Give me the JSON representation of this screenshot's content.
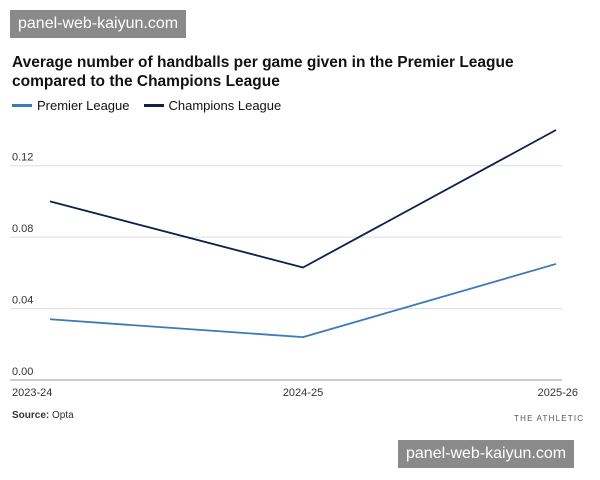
{
  "watermark": {
    "top": "panel-web-kaiyun.com",
    "bottom": "panel-web-kaiyun.com"
  },
  "footer": {
    "source_label": "Source:",
    "source_value": "Opta",
    "brand": "THE ATHLETIC"
  },
  "colors": {
    "premier": "#3d7ab8",
    "champions": "#0c2150",
    "grid": "#dddddd"
  },
  "chart_data": {
    "type": "line",
    "title": "Average number of handballs per game given in the Premier League compared to the Champions League",
    "x": [
      "2023-24",
      "2024-25",
      "2025-26"
    ],
    "series": [
      {
        "name": "Premier League",
        "values": [
          0.034,
          0.024,
          0.065
        ]
      },
      {
        "name": "Champions League",
        "values": [
          0.1,
          0.063,
          0.14
        ]
      }
    ],
    "ylim": [
      0,
      0.14
    ],
    "yticks": [
      "0.00",
      "0.04",
      "0.08",
      "0.12"
    ],
    "xlabel": "",
    "ylabel": "",
    "legend": "top-left",
    "grid": true
  }
}
